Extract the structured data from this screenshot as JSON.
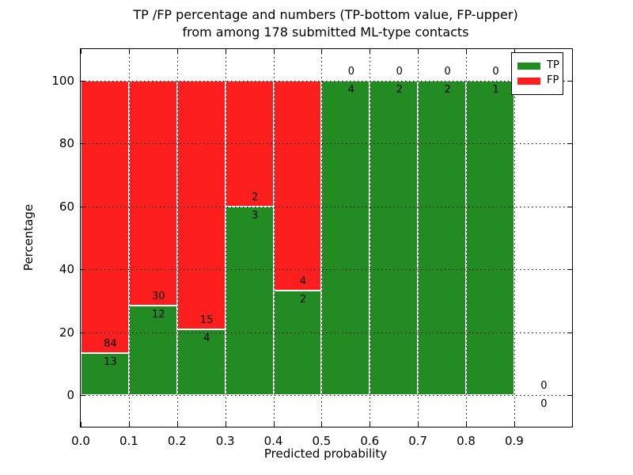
{
  "title": {
    "line1": "TP /FP percentage and numbers (TP-bottom value, FP-upper)",
    "line2": "from among 178 submitted ML-type contacts"
  },
  "axes": {
    "xlabel": "Predicted probability",
    "ylabel": "Percentage",
    "xtick_labels": [
      "0.0",
      "0.1",
      "0.2",
      "0.3",
      "0.4",
      "0.5",
      "0.6",
      "0.7",
      "0.8",
      "0.9"
    ],
    "xtick_values": [
      0.0,
      0.1,
      0.2,
      0.3,
      0.4,
      0.5,
      0.6,
      0.7,
      0.8,
      0.9
    ],
    "ytick_labels": [
      "0",
      "20",
      "40",
      "60",
      "80",
      "100"
    ],
    "ytick_values": [
      0,
      20,
      40,
      60,
      80,
      100
    ],
    "xlim": [
      0.0,
      1.02
    ],
    "ylim": [
      -10,
      110
    ],
    "grid": true
  },
  "legend": {
    "position": "upper-right",
    "items": [
      {
        "label": "TP",
        "color": "#228b22"
      },
      {
        "label": "FP",
        "color": "#ff1e1e"
      }
    ]
  },
  "colors": {
    "tp": "#228b22",
    "fp": "#ff1e1e",
    "grid": "#000000",
    "background": "#ffffff"
  },
  "chart_data": {
    "type": "bar",
    "stacked": true,
    "normalized_to_percent": true,
    "title": "TP /FP percentage and numbers (TP-bottom value, FP-upper) from among 178 submitted ML-type contacts",
    "xlabel": "Predicted probability",
    "ylabel": "Percentage",
    "total_contacts": 178,
    "bar_width": 0.1,
    "bin_edges": [
      0.0,
      0.1,
      0.2,
      0.3,
      0.4,
      0.5,
      0.6,
      0.7,
      0.8,
      0.9,
      1.0
    ],
    "series": [
      {
        "name": "TP",
        "color": "#228b22",
        "counts": [
          13,
          12,
          4,
          3,
          2,
          4,
          2,
          2,
          1,
          0
        ]
      },
      {
        "name": "FP",
        "color": "#ff1e1e",
        "counts": [
          84,
          30,
          15,
          2,
          4,
          0,
          0,
          0,
          0,
          0
        ]
      }
    ],
    "tp_percent": [
      13.4,
      28.6,
      21.1,
      60.0,
      33.3,
      100.0,
      100.0,
      100.0,
      100.0,
      0.0
    ],
    "annotations_note": "FP count printed above the TP/FP boundary, TP count below it, for every bin"
  }
}
